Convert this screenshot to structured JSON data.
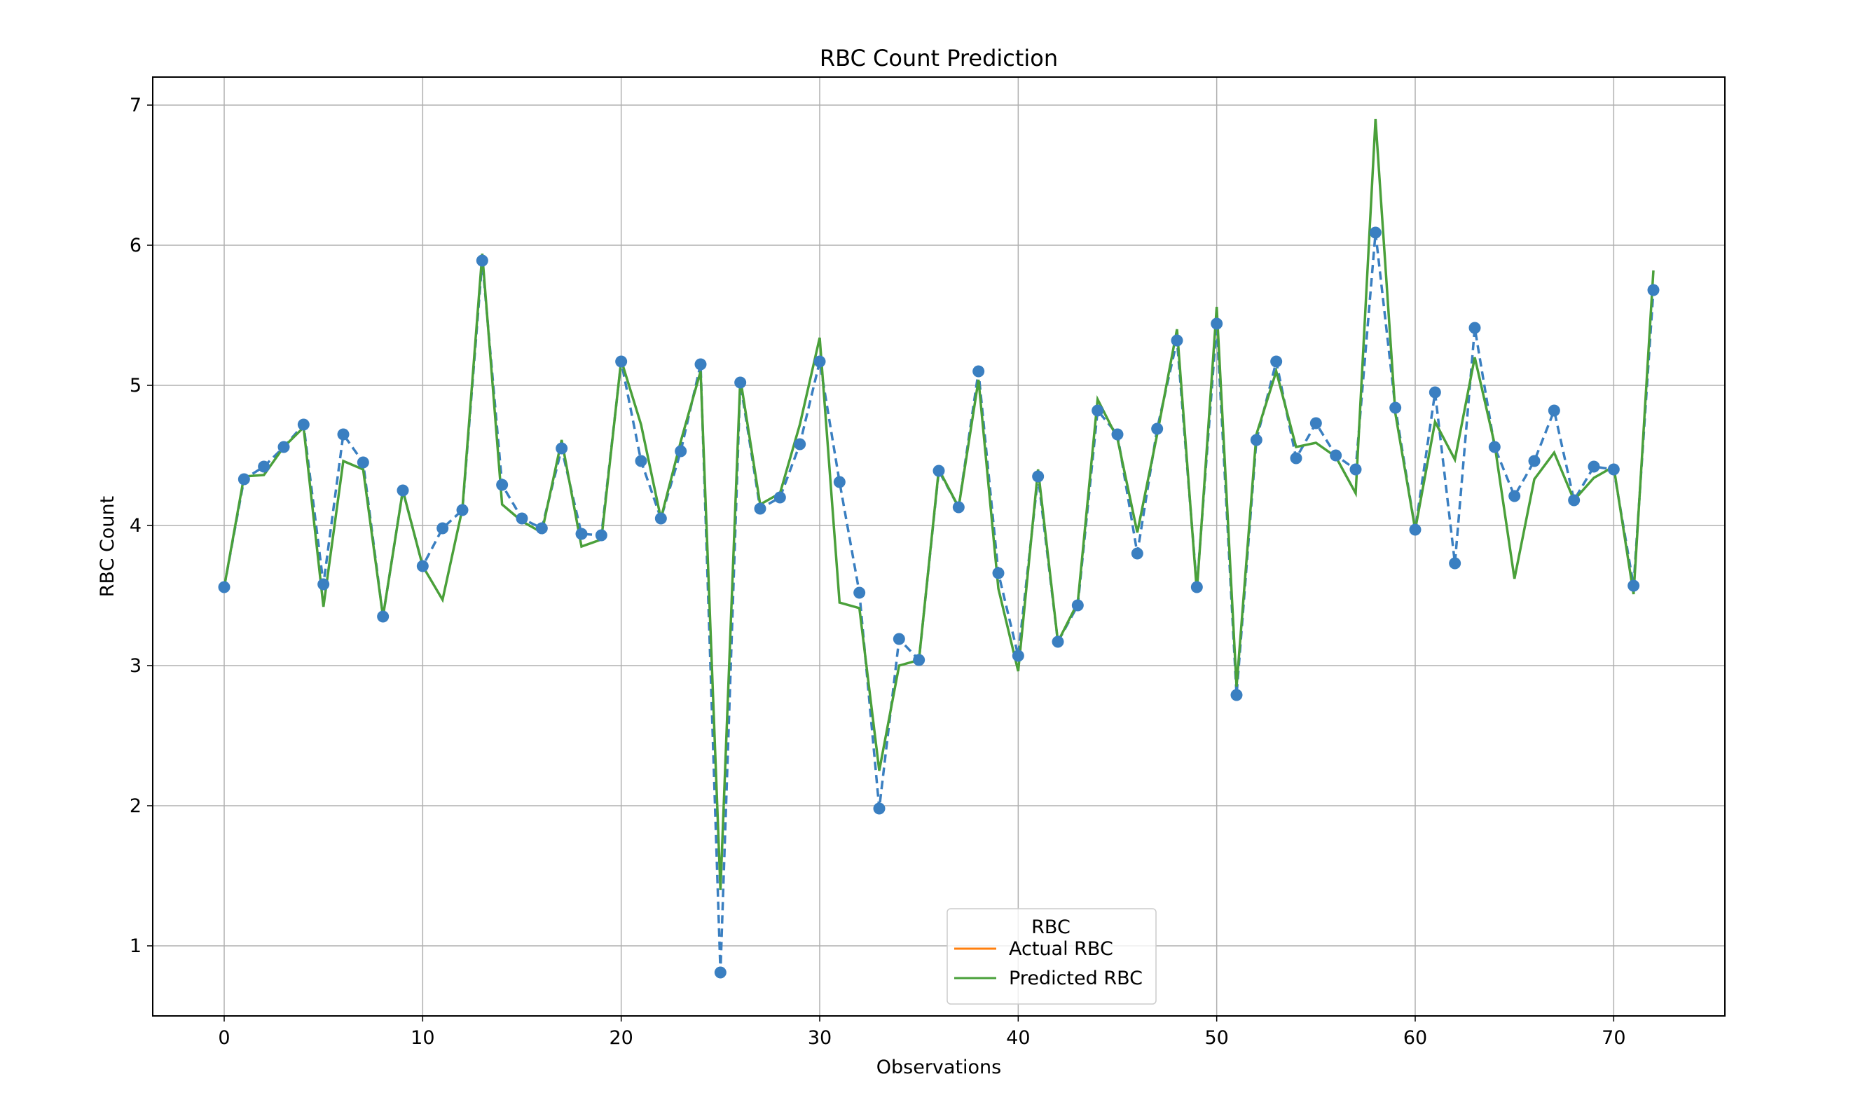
{
  "chart_data": {
    "type": "line",
    "title": "RBC Count Prediction",
    "xlabel": "Observations",
    "ylabel": "RBC Count",
    "xlim": [
      -3.6,
      75.6
    ],
    "ylim": [
      0.5,
      7.2
    ],
    "x_ticks": [
      0,
      10,
      20,
      30,
      40,
      50,
      60,
      70
    ],
    "y_ticks": [
      1,
      2,
      3,
      4,
      5,
      6,
      7
    ],
    "grid": true,
    "legend": {
      "title": "RBC",
      "placement": "lower center",
      "entries": [
        "Actual RBC",
        "Predicted RBC"
      ]
    },
    "colors": {
      "actual_marked": "#3a7fc1",
      "actual_legend": "#ff7f0e",
      "predicted": "#4aa03a",
      "grid": "#b0b0b0"
    },
    "x": [
      0,
      1,
      2,
      3,
      4,
      5,
      6,
      7,
      8,
      9,
      10,
      11,
      12,
      13,
      14,
      15,
      16,
      17,
      18,
      19,
      20,
      21,
      22,
      23,
      24,
      25,
      26,
      27,
      28,
      29,
      30,
      31,
      32,
      33,
      34,
      35,
      36,
      37,
      38,
      39,
      40,
      41,
      42,
      43,
      44,
      45,
      46,
      47,
      48,
      49,
      50,
      51,
      52,
      53,
      54,
      55,
      56,
      57,
      58,
      59,
      60,
      61,
      62,
      63,
      64,
      65,
      66,
      67,
      68,
      69,
      70,
      71,
      72
    ],
    "series": [
      {
        "name": "Actual RBC",
        "style": "dashed-with-markers",
        "values": [
          3.56,
          4.33,
          4.42,
          4.56,
          4.72,
          3.58,
          4.65,
          4.45,
          3.35,
          4.25,
          3.71,
          3.98,
          4.11,
          5.89,
          4.29,
          4.05,
          3.98,
          4.55,
          3.94,
          3.93,
          5.17,
          4.46,
          4.05,
          4.53,
          5.15,
          0.81,
          5.02,
          4.12,
          4.2,
          4.58,
          5.17,
          4.31,
          3.52,
          1.98,
          3.19,
          3.04,
          4.39,
          4.13,
          5.1,
          3.66,
          3.07,
          4.35,
          3.17,
          3.43,
          4.82,
          4.65,
          3.8,
          4.69,
          5.32,
          3.56,
          5.44,
          2.79,
          4.61,
          5.17,
          4.48,
          4.73,
          4.5,
          4.4,
          6.09,
          4.84,
          3.97,
          4.95,
          3.73,
          5.41,
          4.56,
          4.21,
          4.46,
          4.82,
          4.18,
          4.42,
          4.4,
          3.57,
          5.68
        ]
      },
      {
        "name": "Predicted RBC",
        "style": "solid",
        "values": [
          3.56,
          4.35,
          4.36,
          4.56,
          4.7,
          3.42,
          4.46,
          4.4,
          3.35,
          4.25,
          3.71,
          3.47,
          4.12,
          5.94,
          4.15,
          4.03,
          3.95,
          4.61,
          3.85,
          3.9,
          5.18,
          4.72,
          4.05,
          4.6,
          5.1,
          1.4,
          5.05,
          4.15,
          4.23,
          4.72,
          5.34,
          3.45,
          3.41,
          2.25,
          3.0,
          3.04,
          4.4,
          4.13,
          5.04,
          3.55,
          2.96,
          4.4,
          3.17,
          3.45,
          4.9,
          4.62,
          3.95,
          4.65,
          5.4,
          3.53,
          5.56,
          2.85,
          4.65,
          5.1,
          4.56,
          4.59,
          4.49,
          4.23,
          6.9,
          4.8,
          3.97,
          4.74,
          4.47,
          5.2,
          4.58,
          3.62,
          4.33,
          4.52,
          4.18,
          4.34,
          4.42,
          3.51,
          5.82
        ]
      }
    ]
  }
}
